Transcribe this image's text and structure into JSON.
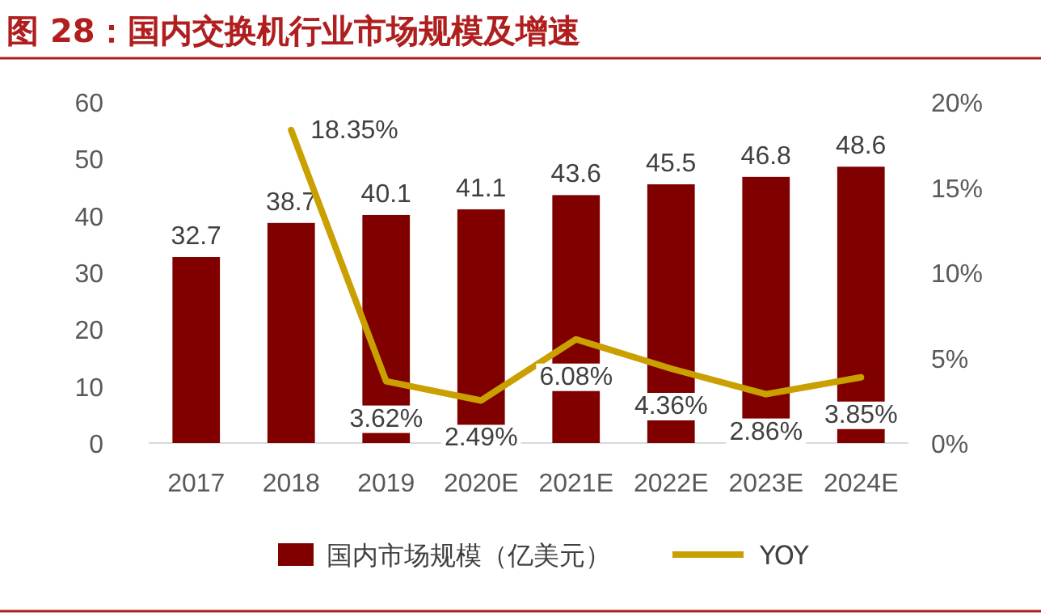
{
  "chart_data": {
    "type": "bar",
    "title": "图 28：国内交换机行业市场规模及增速",
    "categories": [
      "2017",
      "2018",
      "2019",
      "2020E",
      "2021E",
      "2022E",
      "2023E",
      "2024E"
    ],
    "series": [
      {
        "name": "国内市场规模（亿美元）",
        "color": "#800000",
        "values": [
          32.7,
          38.7,
          40.1,
          41.1,
          43.6,
          45.5,
          46.8,
          48.6
        ],
        "value_labels": [
          "32.7",
          "38.7",
          "40.1",
          "41.1",
          "43.6",
          "45.5",
          "46.8",
          "48.6"
        ]
      },
      {
        "name": "YOY",
        "type": "line",
        "axis": "y2",
        "color": "#c9a000",
        "values": [
          null,
          18.35,
          3.62,
          2.49,
          6.08,
          4.36,
          2.86,
          3.85
        ],
        "value_labels": [
          null,
          "18.35%",
          "3.62%",
          "2.49%",
          "6.08%",
          "4.36%",
          "2.86%",
          "3.85%"
        ]
      }
    ],
    "ylim": [
      0,
      60
    ],
    "yticks": [
      0,
      10,
      20,
      30,
      40,
      50,
      60
    ],
    "y2lim": [
      0,
      20
    ],
    "y2ticks": [
      {
        "value": 0,
        "label": "0%"
      },
      {
        "value": 5,
        "label": "5%"
      },
      {
        "value": 10,
        "label": "10%"
      },
      {
        "value": 15,
        "label": "15%"
      },
      {
        "value": 20,
        "label": "20%"
      }
    ],
    "grid": false,
    "legend": "bottom",
    "marker": "none"
  }
}
